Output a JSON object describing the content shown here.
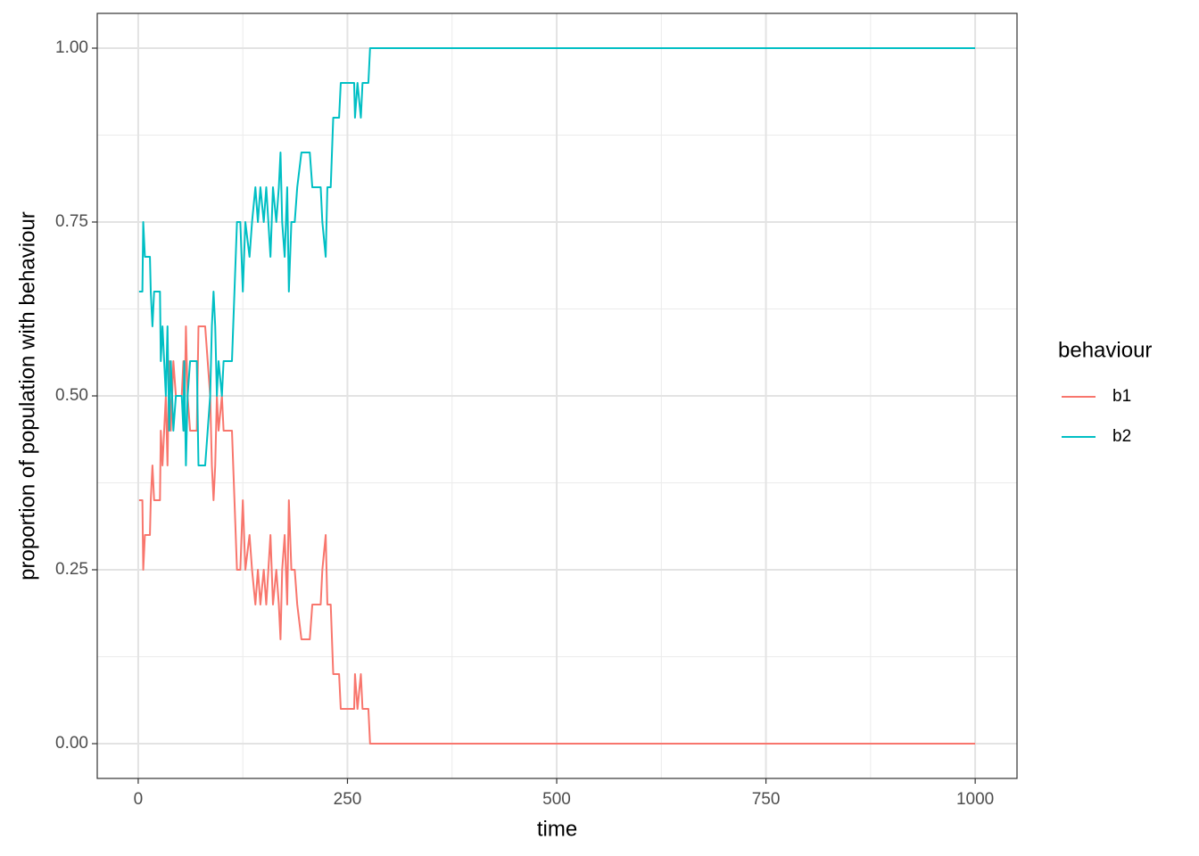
{
  "chart_data": {
    "type": "line",
    "x_label": "time",
    "y_label": "proportion of population with behaviour",
    "legend_title": "behaviour",
    "legend_position": "right",
    "grid": true,
    "x": [
      1,
      5,
      6,
      8,
      14,
      15,
      17,
      19,
      26,
      27,
      29,
      31,
      33,
      35,
      37,
      39,
      42,
      45,
      52,
      54,
      55,
      57,
      59,
      62,
      70,
      72,
      80,
      83,
      86,
      88,
      90,
      92,
      94,
      96,
      100,
      102,
      112,
      115,
      118,
      122,
      125,
      128,
      133,
      136,
      140,
      143,
      146,
      150,
      153,
      158,
      161,
      165,
      168,
      170,
      172,
      175,
      178,
      180,
      183,
      187,
      190,
      195,
      205,
      208,
      218,
      220,
      224,
      226,
      230,
      233,
      240,
      242,
      258,
      259,
      262,
      266,
      268,
      275,
      277,
      1000
    ],
    "series": [
      {
        "name": "b1",
        "color": "#F8766D",
        "values": [
          0.35,
          0.35,
          0.25,
          0.3,
          0.3,
          0.35,
          0.4,
          0.35,
          0.35,
          0.45,
          0.4,
          0.45,
          0.5,
          0.4,
          0.55,
          0.45,
          0.55,
          0.5,
          0.5,
          0.55,
          0.45,
          0.6,
          0.5,
          0.45,
          0.45,
          0.6,
          0.6,
          0.55,
          0.5,
          0.4,
          0.35,
          0.4,
          0.5,
          0.45,
          0.5,
          0.45,
          0.45,
          0.35,
          0.25,
          0.25,
          0.35,
          0.25,
          0.3,
          0.25,
          0.2,
          0.25,
          0.2,
          0.25,
          0.2,
          0.3,
          0.2,
          0.25,
          0.2,
          0.15,
          0.25,
          0.3,
          0.2,
          0.35,
          0.25,
          0.25,
          0.2,
          0.15,
          0.15,
          0.2,
          0.2,
          0.25,
          0.3,
          0.2,
          0.2,
          0.1,
          0.1,
          0.05,
          0.05,
          0.1,
          0.05,
          0.1,
          0.05,
          0.05,
          0,
          0
        ]
      },
      {
        "name": "b2",
        "color": "#00BFC4",
        "values": [
          0.65,
          0.65,
          0.75,
          0.7,
          0.7,
          0.65,
          0.6,
          0.65,
          0.65,
          0.55,
          0.6,
          0.55,
          0.5,
          0.6,
          0.45,
          0.55,
          0.45,
          0.5,
          0.5,
          0.45,
          0.55,
          0.4,
          0.5,
          0.55,
          0.55,
          0.4,
          0.4,
          0.45,
          0.5,
          0.6,
          0.65,
          0.6,
          0.5,
          0.55,
          0.5,
          0.55,
          0.55,
          0.65,
          0.75,
          0.75,
          0.65,
          0.75,
          0.7,
          0.75,
          0.8,
          0.75,
          0.8,
          0.75,
          0.8,
          0.7,
          0.8,
          0.75,
          0.8,
          0.85,
          0.75,
          0.7,
          0.8,
          0.65,
          0.75,
          0.75,
          0.8,
          0.85,
          0.85,
          0.8,
          0.8,
          0.75,
          0.7,
          0.8,
          0.8,
          0.9,
          0.9,
          0.95,
          0.95,
          0.9,
          0.95,
          0.9,
          0.95,
          0.95,
          1,
          1
        ]
      }
    ],
    "xlim": [
      -48.95,
      1049.95
    ],
    "ylim": [
      -0.05,
      1.05
    ],
    "xticks": [
      0,
      250,
      500,
      750,
      1000
    ],
    "yticks": [
      {
        "value": 0,
        "label": "0.00"
      },
      {
        "value": 0.25,
        "label": "0.25"
      },
      {
        "value": 0.5,
        "label": "0.50"
      },
      {
        "value": 0.75,
        "label": "0.75"
      },
      {
        "value": 1,
        "label": "1.00"
      }
    ],
    "xminorticks": [
      125,
      375,
      625,
      875
    ],
    "yminorticks": [
      0.125,
      0.375,
      0.625,
      0.875
    ]
  }
}
